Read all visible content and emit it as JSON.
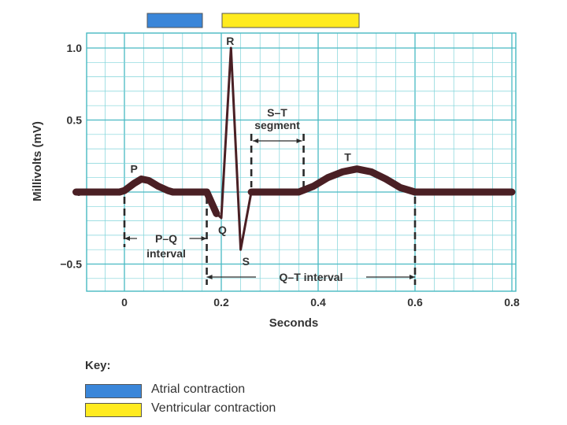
{
  "chart_data": {
    "type": "line",
    "title": "",
    "xlabel": "Seconds",
    "ylabel": "Millivolts (mV)",
    "xlim": [
      -0.1,
      0.8
    ],
    "ylim": [
      -0.68,
      1.1
    ],
    "x_ticks": [
      0,
      0.2,
      0.4,
      0.6,
      0.8
    ],
    "x_tick_labels": [
      "0",
      "0.2",
      "0.4",
      "0.6",
      "0.8"
    ],
    "y_ticks": [
      1.0,
      0.5,
      0,
      -0.5
    ],
    "y_tick_labels": [
      "1.0",
      "0.5",
      "0",
      "−0.5"
    ],
    "grid": true,
    "series": [
      {
        "x": [
          -0.1,
          -0.01,
          0.0,
          0.02,
          0.035,
          0.05,
          0.07,
          0.09,
          0.1,
          0.17,
          0.19,
          0.2,
          0.22,
          0.24,
          0.262,
          0.27,
          0.36,
          0.39,
          0.42,
          0.45,
          0.48,
          0.51,
          0.54,
          0.57,
          0.6,
          0.8
        ],
        "y": [
          0,
          0,
          0.01,
          0.06,
          0.09,
          0.08,
          0.04,
          0.01,
          0,
          0,
          -0.15,
          -0.18,
          1.0,
          -0.4,
          0,
          0,
          0,
          0.04,
          0.1,
          0.14,
          0.16,
          0.14,
          0.09,
          0.03,
          0,
          0
        ]
      }
    ],
    "annotations": {
      "waves": [
        {
          "label": "P",
          "x": 0.035,
          "y": 0.09
        },
        {
          "label": "R",
          "x": 0.22,
          "y": 1.0
        },
        {
          "label": "Q",
          "x": 0.2,
          "y": -0.18
        },
        {
          "label": "S",
          "x": 0.24,
          "y": -0.4
        },
        {
          "label": "T",
          "x": 0.48,
          "y": 0.16
        }
      ],
      "pq_interval": {
        "label_line1": "P–Q",
        "label_line2": "interval",
        "start": 0.0,
        "end": 0.17
      },
      "st_segment": {
        "label_line1": "S–T",
        "label_line2": "segment",
        "start": 0.262,
        "end": 0.37
      },
      "qt_interval": {
        "label": "Q–T interval",
        "start": 0.17,
        "end": 0.6
      }
    },
    "bars": [
      {
        "name": "Atrial contraction",
        "color": "#3a86d9",
        "start": 0.0,
        "end": 0.17
      },
      {
        "name": "Ventricular contraction",
        "color": "#ffeb1f",
        "start": 0.17,
        "end": 0.6
      }
    ]
  },
  "key": {
    "title": "Key:",
    "items": [
      {
        "label": "Atrial contraction",
        "color": "#3a86d9"
      },
      {
        "label": "Ventricular contraction",
        "color": "#ffeb1f"
      }
    ]
  }
}
